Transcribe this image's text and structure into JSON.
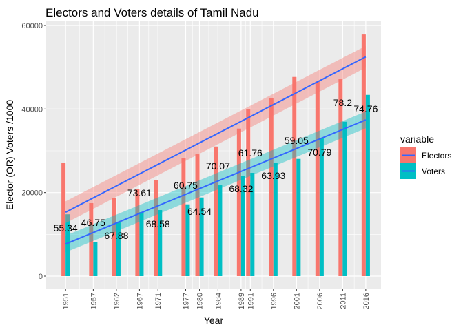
{
  "chart_data": {
    "type": "bar",
    "title": "Electors and Voters details of Tamil Nadu",
    "xlabel": "Year",
    "ylabel": "Elector (OR) Voters /1000",
    "ylim": [
      0,
      60000
    ],
    "xlim": [
      1946.8,
      2019.3
    ],
    "yticks": [
      0,
      20000,
      40000,
      60000
    ],
    "ytick_labels": [
      "0",
      "20000",
      "40000",
      "60000"
    ],
    "x": [
      1951,
      1957,
      1962,
      1967,
      1971,
      1977,
      1980,
      1984,
      1989,
      1991,
      1996,
      2001,
      2006,
      2011,
      2016
    ],
    "x_labels": [
      "1951",
      "1957",
      "1962",
      "1967",
      "1971",
      "1977",
      "1980",
      "1984",
      "1989",
      "1991",
      "1996",
      "2001",
      "2006",
      "2011",
      "2016"
    ],
    "grid": true,
    "legend": {
      "title": "variable",
      "placement": "right"
    },
    "series": [
      {
        "name": "Electors",
        "color": "#F8766D",
        "values": [
          27080,
          17470,
          18670,
          20770,
          22960,
          28180,
          29170,
          31030,
          35320,
          39880,
          42570,
          47680,
          46590,
          47130,
          57840
        ],
        "trend": {
          "start": 15300,
          "end": 52500,
          "band": 2600,
          "band_color": "#F8766D"
        }
      },
      {
        "name": "Voters",
        "color": "#00BFC4",
        "values": [
          14800,
          8080,
          12850,
          15320,
          15820,
          17190,
          18840,
          21750,
          24060,
          24720,
          27190,
          28070,
          33120,
          36960,
          43390
        ],
        "trend": {
          "start": 7700,
          "end": 37400,
          "band": 2000,
          "band_color": "#00BFC4"
        }
      }
    ],
    "trend_line_color": "#3366FF",
    "annotations": [
      {
        "x": 1951,
        "y": 11540,
        "text": "55.34"
      },
      {
        "x": 1957,
        "y": 12850,
        "text": "46.75"
      },
      {
        "x": 1962,
        "y": 9720,
        "text": "67.88"
      },
      {
        "x": 1967,
        "y": 19940,
        "text": "73.61"
      },
      {
        "x": 1971,
        "y": 12520,
        "text": "68.58"
      },
      {
        "x": 1977,
        "y": 21750,
        "text": "60.75"
      },
      {
        "x": 1980,
        "y": 15490,
        "text": "64.54"
      },
      {
        "x": 1984,
        "y": 26370,
        "text": "70.07"
      },
      {
        "x": 1989,
        "y": 20930,
        "text": "68.32"
      },
      {
        "x": 1991,
        "y": 29500,
        "text": "61.76"
      },
      {
        "x": 1996,
        "y": 24060,
        "text": "63.93"
      },
      {
        "x": 2001,
        "y": 32470,
        "text": "59.05"
      },
      {
        "x": 2006,
        "y": 29660,
        "text": "70.79"
      },
      {
        "x": 2011,
        "y": 41530,
        "text": "78.2"
      },
      {
        "x": 2016,
        "y": 40050,
        "text": "74.76"
      }
    ]
  }
}
